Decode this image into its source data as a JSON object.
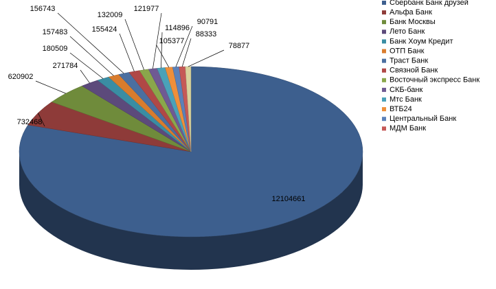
{
  "chart_data": {
    "type": "pie3d",
    "categories": [
      "Сбербанк Банк друзей",
      "Альфа Банк",
      "Банк Москвы",
      "Лето Банк",
      "Банк Хоум Кредит",
      "ОТП Банк",
      "Траст Банк",
      "Связной Банк",
      "Восточный экспресс Банк",
      "СКБ-банк",
      "Мтс Банк",
      "ВТБ24",
      "Центральный Банк",
      "МДМ Банк",
      null
    ],
    "values": [
      12104661,
      732468,
      620902,
      271784,
      180509,
      157483,
      156743,
      155424,
      132009,
      121977,
      114896,
      105377,
      90791,
      88333,
      78877
    ],
    "colors": [
      "#3d5f8e",
      "#8e3b39",
      "#6f8b3b",
      "#5c4a7b",
      "#3a8da3",
      "#d97c2d",
      "#4b6fa0",
      "#b04846",
      "#8aa74b",
      "#6f5a93",
      "#4aa1b9",
      "#ee8f3a",
      "#5b81b9",
      "#c55957",
      "#d9d29c"
    ],
    "legend": "right"
  }
}
